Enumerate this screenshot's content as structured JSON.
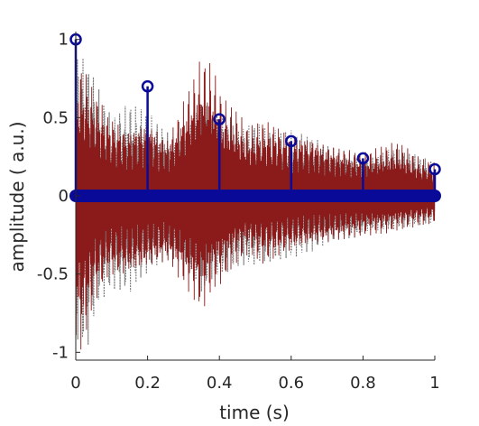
{
  "chart_data": {
    "type": "line",
    "xlabel": "time (s)",
    "ylabel": "amplitude ( a.u.)",
    "xlim": [
      0,
      1
    ],
    "ylim": [
      -1.05,
      1.05
    ],
    "x_ticks": [
      0,
      0.2,
      0.4,
      0.6,
      0.8,
      1
    ],
    "x_tick_labels": [
      "0",
      "0.2",
      "0.4",
      "0.6",
      "0.8",
      "1"
    ],
    "y_ticks": [
      1,
      0.5,
      0,
      -0.5,
      -1
    ],
    "y_tick_labels": [
      "1",
      "0.5",
      "0",
      "-0.5",
      "-1"
    ],
    "grid": false,
    "series": [
      {
        "kind": "stem",
        "color": "#0a0a99",
        "x": [
          0,
          0.2,
          0.4,
          0.6,
          0.8,
          1.0
        ],
        "values": [
          1.0,
          0.7,
          0.49,
          0.35,
          0.24,
          0.17
        ]
      },
      {
        "kind": "waveform",
        "color": "#8b1a1a",
        "style": "solid",
        "x": [
          0.02,
          0.05,
          0.09,
          0.145,
          0.2,
          0.255,
          0.35,
          0.38,
          0.41,
          0.44,
          0.48,
          0.52,
          0.56,
          0.6,
          0.64,
          0.7,
          0.77,
          0.8,
          0.85,
          0.9,
          0.95,
          1.0
        ],
        "envelope_upper": [
          0.85,
          0.7,
          0.55,
          0.45,
          0.52,
          0.38,
          0.9,
          0.85,
          0.62,
          0.58,
          0.45,
          0.5,
          0.48,
          0.4,
          0.42,
          0.35,
          0.3,
          0.28,
          0.32,
          0.35,
          0.26,
          0.22
        ],
        "envelope_lower": [
          -1.0,
          -0.72,
          -0.55,
          -0.55,
          -0.5,
          -0.45,
          -0.75,
          -0.62,
          -0.55,
          -0.45,
          -0.38,
          -0.45,
          -0.42,
          -0.38,
          -0.35,
          -0.32,
          -0.28,
          -0.26,
          -0.25,
          -0.22,
          -0.2,
          -0.18
        ]
      },
      {
        "kind": "waveform",
        "color": "#7f7f7f",
        "style": "dotted",
        "x": [
          0.0,
          0.03,
          0.06,
          0.1,
          0.15,
          0.2,
          0.26,
          0.3,
          0.35,
          0.38,
          0.41,
          0.45,
          0.5,
          0.55,
          0.6,
          0.66,
          0.72,
          0.78,
          0.82,
          0.88,
          0.94,
          1.0
        ],
        "envelope_upper": [
          0.95,
          0.88,
          0.72,
          0.5,
          0.6,
          0.55,
          0.42,
          0.45,
          0.72,
          0.6,
          0.55,
          0.45,
          0.48,
          0.42,
          0.42,
          0.38,
          0.32,
          0.3,
          0.28,
          0.34,
          0.28,
          0.22
        ],
        "envelope_lower": [
          -0.95,
          -1.02,
          -0.7,
          -0.6,
          -0.62,
          -0.5,
          -0.42,
          -0.5,
          -0.72,
          -0.6,
          -0.55,
          -0.48,
          -0.45,
          -0.42,
          -0.4,
          -0.36,
          -0.3,
          -0.3,
          -0.26,
          -0.24,
          -0.2,
          -0.18
        ]
      }
    ]
  }
}
